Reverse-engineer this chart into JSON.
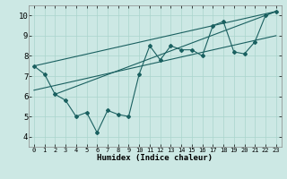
{
  "title": "",
  "xlabel": "Humidex (Indice chaleur)",
  "ylabel": "",
  "xlim": [
    -0.5,
    23.5
  ],
  "ylim": [
    3.5,
    10.5
  ],
  "xticks": [
    0,
    1,
    2,
    3,
    4,
    5,
    6,
    7,
    8,
    9,
    10,
    11,
    12,
    13,
    14,
    15,
    16,
    17,
    18,
    19,
    20,
    21,
    22,
    23
  ],
  "yticks": [
    4,
    5,
    6,
    7,
    8,
    9,
    10
  ],
  "bg_color": "#cce8e4",
  "line_color": "#1a6060",
  "grid_color": "#aad4cc",
  "data_x": [
    0,
    1,
    2,
    3,
    4,
    5,
    6,
    7,
    8,
    9,
    10,
    11,
    12,
    13,
    14,
    15,
    16,
    17,
    18,
    19,
    20,
    21,
    22,
    23
  ],
  "data_y": [
    7.5,
    7.1,
    6.1,
    5.8,
    5.0,
    5.2,
    4.2,
    5.3,
    5.1,
    5.0,
    7.1,
    8.5,
    7.8,
    8.5,
    8.3,
    8.3,
    8.0,
    9.5,
    9.7,
    8.2,
    8.1,
    8.7,
    10.0,
    10.2
  ],
  "line1_x": [
    0,
    23
  ],
  "line1_y": [
    7.5,
    10.2
  ],
  "line2_x": [
    0,
    23
  ],
  "line2_y": [
    6.3,
    9.0
  ],
  "line3_x": [
    2,
    23
  ],
  "line3_y": [
    6.1,
    10.2
  ]
}
